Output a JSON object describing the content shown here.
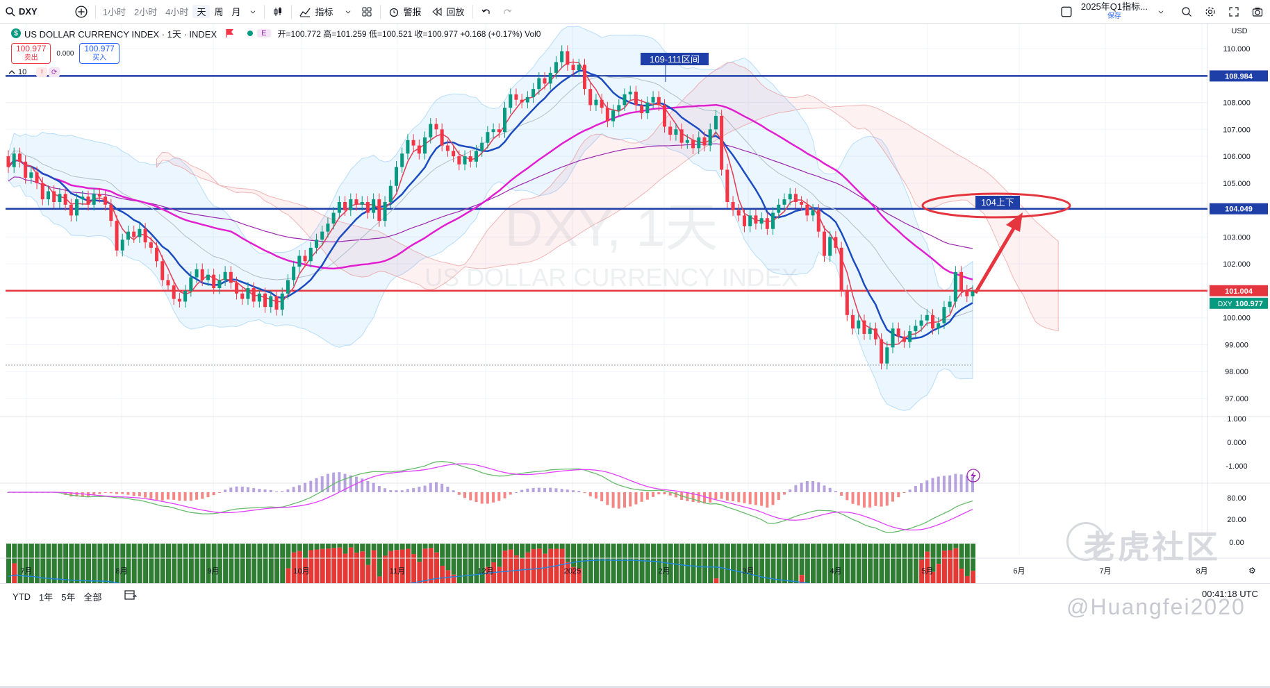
{
  "toolbar": {
    "symbol": "DXY",
    "intervals": [
      "1小时",
      "2小时",
      "4小时",
      "天",
      "周",
      "月"
    ],
    "active_interval": "天",
    "indicators_label": "指标",
    "alert_label": "警报",
    "replay_label": "回放",
    "layout_name": "2025年Q1指标...",
    "layout_status": "保存"
  },
  "legend": {
    "title": "US DOLLAR CURRENCY INDEX · 1天 · INDEX",
    "ohlc": "开=100.772 高=101.259 低=100.521 收=100.977 +0.168 (+0.17%) Vol0",
    "e_badge": "E"
  },
  "trade": {
    "sell_price": "100.977",
    "sell_label": "卖出",
    "spread": "0.000",
    "buy_price": "100.977",
    "buy_label": "买入"
  },
  "indicator_count": "10",
  "price_axis": {
    "currency": "USD",
    "ticks": [
      "110.000",
      "109.000",
      "108.000",
      "107.000",
      "106.000",
      "105.000",
      "104.000",
      "103.000",
      "102.000",
      "101.000",
      "100.000",
      "99.000",
      "98.000",
      "97.000"
    ],
    "tag_upper": "108.984",
    "tag_mid": "104.049",
    "tag_red": "101.004",
    "tag_symbol": "DXY",
    "tag_last": "100.977"
  },
  "macd_axis": [
    "1.000",
    "0.000",
    "-1.000"
  ],
  "osc_axis": [
    "80.00",
    "20.00",
    "0.00"
  ],
  "time_axis": [
    "7月",
    "8月",
    "9月",
    "10月",
    "11月",
    "12月",
    "2025",
    "2月",
    "3月",
    "4月",
    "5月",
    "6月",
    "7月",
    "8月"
  ],
  "annotations": {
    "range_label": "109-111区间",
    "target_label": "104上下",
    "watermark_main": "DXY, 1天",
    "watermark_sub": "US DOLLAR CURRENCY INDEX"
  },
  "bottom": {
    "ranges": [
      "YTD",
      "1年",
      "5年",
      "全部"
    ],
    "clock": "00:41:18 UTC"
  },
  "overlay_marks": {
    "tiger_text": "老虎社区",
    "author": "@Huangfei2020"
  },
  "colors": {
    "up": "#089981",
    "down": "#f23645",
    "resistance_line": "#1e3fa8",
    "support_line": "#e5363f",
    "ma_fast": "#e0435b",
    "ma_mid": "#1b4bc1",
    "ma_slow": "#e21fd0",
    "ma_long": "#9c27b0"
  },
  "chart_data": {
    "type": "candlestick",
    "title": "US DOLLAR CURRENCY INDEX · 1天 · INDEX",
    "ylim": [
      96.5,
      110.5
    ],
    "horizontal_levels": [
      108.984,
      104.049,
      101.004
    ],
    "last_close": 100.977,
    "candles": [
      [
        106,
        105.6
      ],
      [
        105.6,
        106.1
      ],
      [
        106.1,
        105.8
      ],
      [
        105.8,
        105.2
      ],
      [
        105.2,
        105.4
      ],
      [
        105.4,
        105.0
      ],
      [
        105.0,
        104.4
      ],
      [
        104.4,
        104.7
      ],
      [
        104.7,
        104.3
      ],
      [
        104.3,
        104.6
      ],
      [
        104.6,
        104.2
      ],
      [
        104.2,
        103.8
      ],
      [
        103.8,
        104.4
      ],
      [
        104.4,
        104.5
      ],
      [
        104.5,
        104.2
      ],
      [
        104.2,
        104.6
      ],
      [
        104.6,
        104.5
      ],
      [
        104.5,
        104.2
      ],
      [
        104.2,
        103.6
      ],
      [
        103.6,
        102.5
      ],
      [
        102.5,
        102.9
      ],
      [
        102.9,
        103.2
      ],
      [
        103.2,
        103.0
      ],
      [
        103.0,
        103.3
      ],
      [
        103.3,
        102.8
      ],
      [
        102.8,
        102.6
      ],
      [
        102.6,
        102.1
      ],
      [
        102.1,
        101.4
      ],
      [
        101.4,
        101.2
      ],
      [
        101.2,
        100.7
      ],
      [
        100.7,
        100.6
      ],
      [
        100.6,
        101.0
      ],
      [
        101.0,
        101.5
      ],
      [
        101.5,
        101.8
      ],
      [
        101.8,
        101.4
      ],
      [
        101.4,
        101.6
      ],
      [
        101.6,
        101.1
      ],
      [
        101.1,
        101.4
      ],
      [
        101.4,
        101.7
      ],
      [
        101.7,
        101.3
      ],
      [
        101.3,
        100.9
      ],
      [
        100.9,
        100.7
      ],
      [
        100.7,
        101.1
      ],
      [
        101.1,
        100.6
      ],
      [
        100.6,
        100.9
      ],
      [
        100.9,
        100.4
      ],
      [
        100.4,
        100.8
      ],
      [
        100.8,
        100.3
      ],
      [
        100.3,
        100.9
      ],
      [
        100.9,
        101.4
      ],
      [
        101.4,
        101.9
      ],
      [
        101.9,
        102.3
      ],
      [
        102.3,
        102.1
      ],
      [
        102.1,
        102.6
      ],
      [
        102.6,
        102.9
      ],
      [
        102.9,
        103.2
      ],
      [
        103.2,
        103.5
      ],
      [
        103.5,
        103.9
      ],
      [
        103.9,
        104.3
      ],
      [
        104.3,
        104.0
      ],
      [
        104.0,
        104.4
      ],
      [
        104.4,
        104.2
      ],
      [
        104.2,
        104.3
      ],
      [
        104.3,
        103.9
      ],
      [
        103.9,
        104.4
      ],
      [
        104.4,
        103.6
      ],
      [
        103.6,
        104.3
      ],
      [
        104.3,
        104.9
      ],
      [
        104.9,
        105.6
      ],
      [
        105.6,
        106.1
      ],
      [
        106.1,
        106.6
      ],
      [
        106.6,
        106.4
      ],
      [
        106.4,
        106.1
      ],
      [
        106.1,
        106.7
      ],
      [
        106.7,
        107.2
      ],
      [
        107.2,
        107.0
      ],
      [
        107.0,
        106.4
      ],
      [
        106.4,
        106.2
      ],
      [
        106.2,
        106.0
      ],
      [
        106.0,
        105.7
      ],
      [
        105.7,
        106.0
      ],
      [
        106.0,
        105.8
      ],
      [
        105.8,
        106.2
      ],
      [
        106.2,
        106.5
      ],
      [
        106.5,
        106.9
      ],
      [
        106.9,
        107.0
      ],
      [
        107.0,
        106.9
      ],
      [
        106.9,
        107.8
      ],
      [
        107.8,
        108.3
      ],
      [
        108.3,
        108.1
      ],
      [
        108.1,
        108.0
      ],
      [
        108.0,
        108.2
      ],
      [
        108.2,
        108.5
      ],
      [
        108.5,
        108.9
      ],
      [
        108.9,
        108.7
      ],
      [
        108.7,
        109.1
      ],
      [
        109.1,
        109.5
      ],
      [
        109.5,
        109.9
      ],
      [
        109.9,
        109.4
      ],
      [
        109.4,
        109.2
      ],
      [
        109.2,
        109.4
      ],
      [
        109.4,
        108.5
      ],
      [
        108.5,
        107.9
      ],
      [
        107.9,
        108.1
      ],
      [
        108.1,
        107.8
      ],
      [
        107.8,
        107.3
      ],
      [
        107.3,
        107.7
      ],
      [
        107.7,
        107.9
      ],
      [
        107.9,
        108.3
      ],
      [
        108.3,
        108.4
      ],
      [
        108.4,
        107.9
      ],
      [
        107.9,
        107.6
      ],
      [
        107.6,
        108.0
      ],
      [
        108.0,
        108.2
      ],
      [
        108.2,
        107.9
      ],
      [
        107.9,
        107.1
      ],
      [
        107.1,
        106.8
      ],
      [
        106.8,
        107.0
      ],
      [
        107.0,
        106.5
      ],
      [
        106.5,
        106.6
      ],
      [
        106.6,
        106.3
      ],
      [
        106.3,
        106.7
      ],
      [
        106.7,
        106.4
      ],
      [
        106.4,
        107.0
      ],
      [
        107.0,
        107.5
      ],
      [
        107.5,
        105.5
      ],
      [
        105.5,
        104.3
      ],
      [
        104.3,
        104.0
      ],
      [
        104.0,
        103.8
      ],
      [
        103.8,
        103.4
      ],
      [
        103.4,
        103.8
      ],
      [
        103.8,
        103.5
      ],
      [
        103.5,
        103.7
      ],
      [
        103.7,
        103.3
      ],
      [
        103.3,
        103.9
      ],
      [
        103.9,
        104.2
      ],
      [
        104.2,
        104.4
      ],
      [
        104.4,
        104.6
      ],
      [
        104.6,
        104.3
      ],
      [
        104.3,
        104.2
      ],
      [
        104.2,
        103.8
      ],
      [
        103.8,
        104.0
      ],
      [
        104.0,
        103.2
      ],
      [
        103.2,
        102.3
      ],
      [
        102.3,
        103.0
      ],
      [
        103.0,
        102.6
      ],
      [
        102.6,
        101.0
      ],
      [
        101.0,
        100.1
      ],
      [
        100.1,
        99.6
      ],
      [
        99.6,
        99.9
      ],
      [
        99.9,
        99.4
      ],
      [
        99.4,
        99.6
      ],
      [
        99.6,
        99.2
      ],
      [
        99.2,
        98.3
      ],
      [
        98.3,
        98.9
      ],
      [
        98.9,
        99.6
      ],
      [
        99.6,
        99.3
      ],
      [
        99.3,
        99.1
      ],
      [
        99.1,
        99.5
      ],
      [
        99.5,
        99.7
      ],
      [
        99.7,
        99.9
      ],
      [
        99.9,
        100.1
      ],
      [
        100.1,
        99.6
      ],
      [
        99.6,
        99.8
      ],
      [
        99.8,
        100.4
      ],
      [
        100.4,
        100.6
      ],
      [
        100.6,
        101.7
      ],
      [
        101.7,
        101.0
      ],
      [
        101.0,
        100.8
      ],
      [
        100.8,
        100.977
      ]
    ],
    "time_labels": [
      "7月",
      "8月",
      "9月",
      "10月",
      "11月",
      "12月",
      "2025",
      "2月",
      "3月",
      "4月",
      "5月",
      "6月",
      "7月",
      "8月"
    ]
  }
}
